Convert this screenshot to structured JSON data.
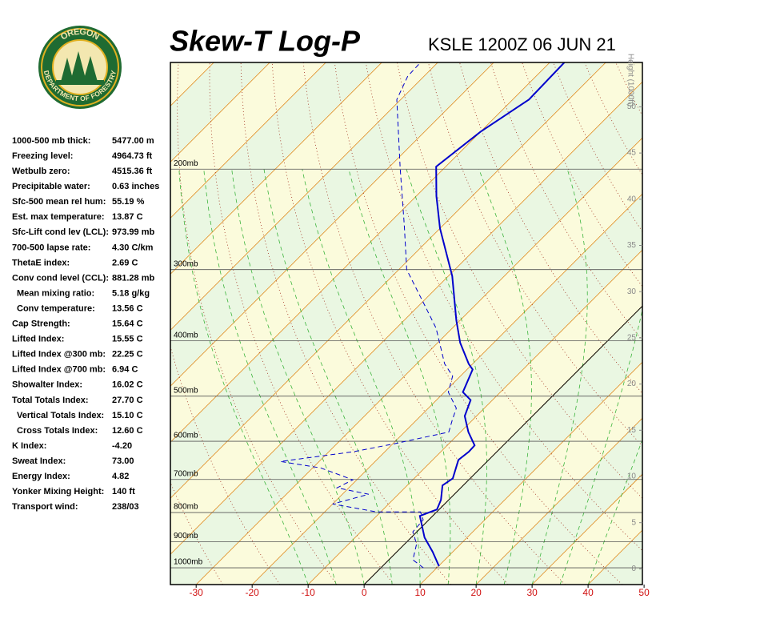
{
  "logo": {
    "top": "OREGON",
    "bottom": "DEPARTMENT OF FORESTRY"
  },
  "chart_data": {
    "type": "skewt",
    "title": "Skew-T Log-P",
    "subtitle": "KSLE 1200Z 06 JUN 21",
    "xlim": [
      -34.6,
      49.7
    ],
    "xticks": [
      -30,
      -20,
      -10,
      0,
      10,
      20,
      30,
      40,
      50
    ],
    "ylim": [
      1070,
      130
    ],
    "log_y": true,
    "yticks": [
      {
        "value": 1000,
        "label": "1000mb"
      },
      {
        "value": 900,
        "label": "900mb"
      },
      {
        "value": 800,
        "label": "800mb"
      },
      {
        "value": 700,
        "label": "700mb"
      },
      {
        "value": 600,
        "label": "600mb"
      },
      {
        "value": 500,
        "label": "500mb"
      },
      {
        "value": 400,
        "label": "400mb"
      },
      {
        "value": 300,
        "label": "300mb"
      },
      {
        "value": 200,
        "label": "200mb"
      }
    ],
    "y2label": "Height (1000ft)",
    "y2lim": [
      -1.7,
      54.8
    ],
    "y2ticks": [
      0,
      5,
      10,
      15,
      20,
      25,
      30,
      35,
      40,
      45,
      50
    ],
    "series": [
      {
        "color": "#0000cc",
        "dash": false,
        "pressure": [
          993.6,
          937.5,
          885,
          811,
          790,
          760,
          717,
          697,
          647,
          626,
          610,
          578,
          542,
          508,
          492,
          449,
          439,
          403,
          368,
          308,
          254,
          223,
          198,
          172,
          151,
          130
        ],
        "values": [
          10.1,
          6.4,
          2.4,
          -2.3,
          -0.4,
          -1.4,
          -3.7,
          -3.1,
          -5.4,
          -5.0,
          -5.1,
          -8.6,
          -12.1,
          -13.9,
          -16.7,
          -19.0,
          -20.7,
          -26.0,
          -30.7,
          -39.3,
          -50.0,
          -56.4,
          -61.7,
          -60.0,
          -57.1,
          -57.4
        ]
      },
      {
        "color": "#0000cc",
        "dash": true,
        "pressure": [
          1000,
          968.3,
          907.6,
          865,
          824,
          798,
          798,
          773,
          743,
          724,
          701,
          668,
          651,
          637,
          626,
          607,
          578,
          551,
          525,
          492,
          461,
          439,
          380,
          345,
          300,
          250,
          199,
          151,
          137.5,
          130
        ],
        "values": [
          7.6,
          4.3,
          2.1,
          -0.7,
          -1.0,
          -2.9,
          -10.7,
          -20.0,
          -15.3,
          -22.1,
          -20.7,
          -28.6,
          -36.9,
          -30.7,
          -25.7,
          -20.0,
          -12.1,
          -13.6,
          -15.0,
          -19.3,
          -21.4,
          -25.0,
          -32.9,
          -39.3,
          -48.6,
          -57.1,
          -67.9,
          -80.7,
          -82.9,
          -83.1
        ]
      }
    ]
  },
  "indices": [
    [
      "1000-500 mb thick:",
      "5477.00 m"
    ],
    [
      "Freezing level:",
      "4964.73 ft"
    ],
    [
      "Wetbulb zero:",
      "4515.36 ft"
    ],
    [
      "Precipitable water:",
      "0.63 inches"
    ],
    [
      "Sfc-500 mean rel hum:",
      "55.19 %"
    ],
    [
      "Est. max temperature:",
      "13.87 C"
    ],
    [
      "Sfc-Lift cond lev (LCL):",
      "973.99 mb"
    ],
    [
      "700-500 lapse rate:",
      "4.30 C/km"
    ],
    [
      "ThetaE index:",
      "2.69 C"
    ],
    [
      "Conv cond level (CCL):",
      "881.28 mb"
    ],
    [
      "Mean mixing ratio:",
      "5.18 g/kg"
    ],
    [
      "Conv temperature:",
      "13.56 C"
    ],
    [
      "Cap Strength:",
      "15.64 C"
    ],
    [
      "Lifted Index:",
      "15.55 C"
    ],
    [
      "Lifted Index @300 mb:",
      "22.25 C"
    ],
    [
      "Lifted Index @700 mb:",
      "6.94 C"
    ],
    [
      "Showalter Index:",
      "16.02 C"
    ],
    [
      "Total Totals Index:",
      "27.70 C"
    ],
    [
      "Vertical Totals Index:",
      "15.10 C"
    ],
    [
      "Cross Totals Index:",
      "12.60 C"
    ],
    [
      "K Index:",
      "-4.20"
    ],
    [
      "Sweat Index:",
      "73.00"
    ],
    [
      "Energy Index:",
      "4.82"
    ],
    [
      "Yonker Mixing Height:",
      "140 ft"
    ],
    [
      "Transport wind:",
      "238/03"
    ]
  ]
}
